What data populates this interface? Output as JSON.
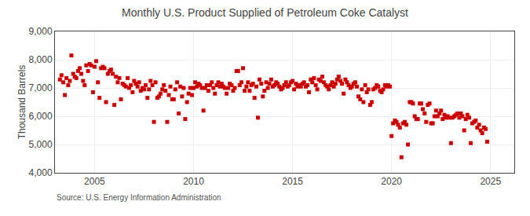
{
  "chart_data": {
    "type": "scatter",
    "title": "Monthly U.S. Product Supplied of Petroleum Coke Catalyst",
    "ylabel": "Thousand Barrels",
    "annotations": [
      "Source: U.S. Energy Information Administration"
    ],
    "color": "#cc0000",
    "marker": "square",
    "grid": true,
    "xlim": [
      2003.0,
      2026.2
    ],
    "xticks": [
      2005,
      2010,
      2015,
      2020,
      2025
    ],
    "ylim": [
      4000,
      9000
    ],
    "yticks": [
      {
        "value": 4000,
        "label": "4,000"
      },
      {
        "value": 5000,
        "label": "5,000"
      },
      {
        "value": 6000,
        "label": "6,000"
      },
      {
        "value": 7000,
        "label": "7,000"
      },
      {
        "value": 8000,
        "label": "8,000"
      },
      {
        "value": 9000,
        "label": "9,000"
      }
    ],
    "x": [
      2003.25,
      2003.33,
      2003.42,
      2003.5,
      2003.58,
      2003.67,
      2003.75,
      2003.83,
      2003.92,
      2004.0,
      2004.08,
      2004.17,
      2004.25,
      2004.33,
      2004.42,
      2004.5,
      2004.58,
      2004.67,
      2004.75,
      2004.83,
      2004.92,
      2005.0,
      2005.08,
      2005.17,
      2005.25,
      2005.33,
      2005.42,
      2005.5,
      2005.58,
      2005.67,
      2005.75,
      2005.83,
      2005.92,
      2006.0,
      2006.08,
      2006.17,
      2006.25,
      2006.33,
      2006.42,
      2006.5,
      2006.58,
      2006.67,
      2006.75,
      2006.83,
      2006.92,
      2007.0,
      2007.08,
      2007.17,
      2007.25,
      2007.33,
      2007.42,
      2007.5,
      2007.58,
      2007.67,
      2007.75,
      2007.83,
      2007.92,
      2008.0,
      2008.08,
      2008.17,
      2008.25,
      2008.33,
      2008.42,
      2008.5,
      2008.58,
      2008.67,
      2008.75,
      2008.83,
      2008.92,
      2009.0,
      2009.08,
      2009.17,
      2009.25,
      2009.33,
      2009.42,
      2009.5,
      2009.58,
      2009.67,
      2009.75,
      2009.83,
      2009.92,
      2010.0,
      2010.08,
      2010.17,
      2010.25,
      2010.33,
      2010.42,
      2010.5,
      2010.58,
      2010.67,
      2010.75,
      2010.83,
      2010.92,
      2011.0,
      2011.08,
      2011.17,
      2011.25,
      2011.33,
      2011.42,
      2011.5,
      2011.58,
      2011.67,
      2011.75,
      2011.83,
      2011.92,
      2012.0,
      2012.08,
      2012.17,
      2012.25,
      2012.33,
      2012.42,
      2012.5,
      2012.58,
      2012.67,
      2012.75,
      2012.83,
      2012.92,
      2013.0,
      2013.08,
      2013.17,
      2013.25,
      2013.33,
      2013.42,
      2013.5,
      2013.58,
      2013.67,
      2013.75,
      2013.83,
      2013.92,
      2014.0,
      2014.08,
      2014.17,
      2014.25,
      2014.33,
      2014.42,
      2014.5,
      2014.58,
      2014.67,
      2014.75,
      2014.83,
      2014.92,
      2015.0,
      2015.08,
      2015.17,
      2015.25,
      2015.33,
      2015.42,
      2015.5,
      2015.58,
      2015.67,
      2015.75,
      2015.83,
      2015.92,
      2016.0,
      2016.08,
      2016.17,
      2016.25,
      2016.33,
      2016.42,
      2016.5,
      2016.58,
      2016.67,
      2016.75,
      2016.83,
      2016.92,
      2017.0,
      2017.08,
      2017.17,
      2017.25,
      2017.33,
      2017.42,
      2017.5,
      2017.58,
      2017.67,
      2017.75,
      2017.83,
      2017.92,
      2018.0,
      2018.08,
      2018.17,
      2018.25,
      2018.33,
      2018.42,
      2018.5,
      2018.58,
      2018.67,
      2018.75,
      2018.83,
      2018.92,
      2019.0,
      2019.08,
      2019.17,
      2019.25,
      2019.33,
      2019.42,
      2019.5,
      2019.58,
      2019.67,
      2019.75,
      2019.83,
      2019.92,
      2020.0,
      2020.08,
      2020.17,
      2020.25,
      2020.33,
      2020.42,
      2020.5,
      2020.58,
      2020.67,
      2020.75,
      2020.83,
      2020.92,
      2021.0,
      2021.08,
      2021.17,
      2021.25,
      2021.33,
      2021.42,
      2021.5,
      2021.58,
      2021.67,
      2021.75,
      2021.83,
      2021.92,
      2022.0,
      2022.08,
      2022.17,
      2022.25,
      2022.33,
      2022.42,
      2022.5,
      2022.58,
      2022.67,
      2022.75,
      2022.83,
      2022.92,
      2023.0,
      2023.08,
      2023.17,
      2023.25,
      2023.33,
      2023.42,
      2023.5,
      2023.58,
      2023.67,
      2023.75,
      2023.83,
      2023.92,
      2024.0,
      2024.08,
      2024.17,
      2024.25,
      2024.33,
      2024.42,
      2024.5,
      2024.58,
      2024.67,
      2024.75,
      2024.83
    ],
    "values": [
      7300,
      7450,
      7200,
      6750,
      7350,
      7100,
      7250,
      8150,
      7500,
      7400,
      7350,
      7600,
      7700,
      7500,
      7250,
      7100,
      7800,
      7600,
      7850,
      7800,
      6850,
      7750,
      7950,
      7200,
      6650,
      7700,
      7750,
      7700,
      6500,
      7500,
      7600,
      7650,
      7500,
      6400,
      7400,
      7200,
      7350,
      6600,
      7150,
      7100,
      7050,
      7350,
      7000,
      7100,
      6850,
      7250,
      7150,
      7050,
      7200,
      6900,
      7000,
      6950,
      7100,
      6650,
      6950,
      7250,
      7100,
      5800,
      7200,
      6650,
      6700,
      6800,
      6950,
      7100,
      6900,
      5800,
      6750,
      7050,
      6600,
      6600,
      6950,
      7200,
      6100,
      7050,
      6700,
      7000,
      5900,
      6500,
      6800,
      7000,
      6750,
      7000,
      7200,
      7050,
      7150,
      7100,
      7000,
      6200,
      7000,
      7100,
      6900,
      7100,
      7200,
      7000,
      6800,
      7100,
      7200,
      7050,
      7150,
      7050,
      7000,
      6800,
      7000,
      7150,
      7100,
      6900,
      7000,
      7600,
      7600,
      7100,
      7200,
      7700,
      6900,
      7050,
      7200,
      6900,
      7100,
      7150,
      6650,
      7050,
      5950,
      7300,
      7150,
      6700,
      6900,
      7200,
      7000,
      7150,
      7300,
      7050,
      7100,
      7200,
      7150,
      7050,
      6950,
      7000,
      7100,
      7200,
      7050,
      7100,
      7200,
      7250,
      6950,
      7150,
      7050,
      7100,
      7050,
      7150,
      7200,
      7050,
      7100,
      6850,
      7300,
      7200,
      7350,
      7100,
      6950,
      7300,
      7250,
      7400,
      7200,
      7100,
      7050,
      6950,
      7100,
      7200,
      7050,
      7150,
      7300,
      7400,
      7250,
      7150,
      6800,
      7300,
      7200,
      7100,
      7000,
      7050,
      7150,
      7200,
      7050,
      6700,
      6600,
      6950,
      6500,
      7100,
      6850,
      6950,
      6400,
      6500,
      6950,
      7000,
      7100,
      7050,
      6900,
      6850,
      6950,
      7100,
      7050,
      7100,
      7050,
      5300,
      5750,
      5850,
      5800,
      5700,
      5600,
      4550,
      5750,
      5800,
      5700,
      5000,
      6500,
      6500,
      6450,
      6000,
      5900,
      5900,
      6450,
      6450,
      6250,
      6100,
      5800,
      6400,
      6450,
      5750,
      5750,
      6000,
      6200,
      6000,
      6100,
      6200,
      5900,
      6050,
      5950,
      6000,
      5950,
      5050,
      5950,
      6000,
      6050,
      6100,
      5950,
      6100,
      6000,
      5500,
      5900,
      6050,
      5950,
      5050,
      5750,
      5800,
      5850,
      5600,
      5700,
      5500,
      5400,
      5600,
      5550,
      5100
    ]
  }
}
